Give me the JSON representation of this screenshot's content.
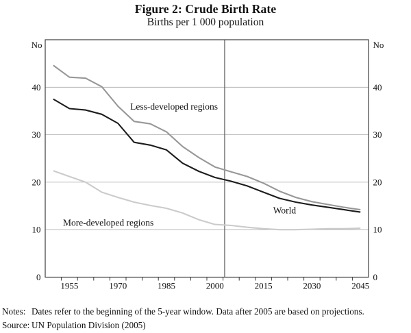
{
  "figure": {
    "title": "Figure 2: Crude Birth Rate",
    "subtitle": "Births per 1 000 population",
    "notes": {
      "label": "Notes:",
      "text": "Dates refer to the beginning of the 5-year window. Data after 2005 are based on projections."
    },
    "source": {
      "label": "Source:",
      "text": "UN Population Division (2005)"
    }
  },
  "chart_data": {
    "type": "line",
    "title": "Figure 2: Crude Birth Rate",
    "subtitle": "Births per 1 000 population",
    "y_axis_unit": "No",
    "xlabel": "",
    "ylabel": "Births per 1 000 population (No)",
    "x": [
      1950,
      1955,
      1960,
      1965,
      1970,
      1975,
      1980,
      1985,
      1990,
      1995,
      2000,
      2005,
      2010,
      2015,
      2020,
      2025,
      2030,
      2035,
      2040,
      2045
    ],
    "series": [
      {
        "name": "Less-developed regions",
        "color": "#979797",
        "values": [
          44.6,
          42.1,
          41.9,
          40.1,
          36.0,
          32.8,
          32.3,
          30.6,
          27.5,
          25.2,
          23.2,
          22.2,
          21.2,
          19.8,
          18.1,
          16.8,
          15.9,
          15.3,
          14.7,
          14.2
        ],
        "label": {
          "year": 1973.8,
          "value": 35.3
        }
      },
      {
        "name": "World",
        "color": "#1c1c1c",
        "values": [
          37.5,
          35.5,
          35.2,
          34.3,
          32.4,
          28.4,
          27.8,
          26.8,
          24.0,
          22.3,
          21.0,
          20.2,
          19.2,
          17.9,
          16.6,
          15.8,
          15.2,
          14.7,
          14.2,
          13.7
        ],
        "label": {
          "year": 2018.0,
          "value": 13.4
        }
      },
      {
        "name": "More-developed regions",
        "color": "#cbcbcb",
        "values": [
          22.4,
          21.2,
          20.0,
          17.9,
          16.8,
          15.8,
          15.1,
          14.5,
          13.5,
          12.1,
          11.1,
          10.9,
          10.5,
          10.2,
          10.0,
          10.0,
          10.1,
          10.2,
          10.2,
          10.3
        ],
        "label": {
          "year": 1953.0,
          "value": 10.8
        }
      }
    ],
    "ylim": [
      0,
      50
    ],
    "yticks": [
      0,
      10,
      20,
      30,
      40
    ],
    "gridlines": [
      10,
      20,
      30,
      40
    ],
    "xlim": [
      1947.5,
      2047.5
    ],
    "xticks_minor": {
      "start": 1952.5,
      "end": 2042.5,
      "step": 5
    },
    "xtick_labels": [
      "1955",
      "1970",
      "1985",
      "2000",
      "2015",
      "2030",
      "2045"
    ],
    "divider_year": 2003,
    "grid": true,
    "legend_position": "inline-annotations",
    "colors": {
      "text": "#111111",
      "frame": "#3c3c3c",
      "gridline": "#ababab",
      "divider": "#595959"
    }
  }
}
